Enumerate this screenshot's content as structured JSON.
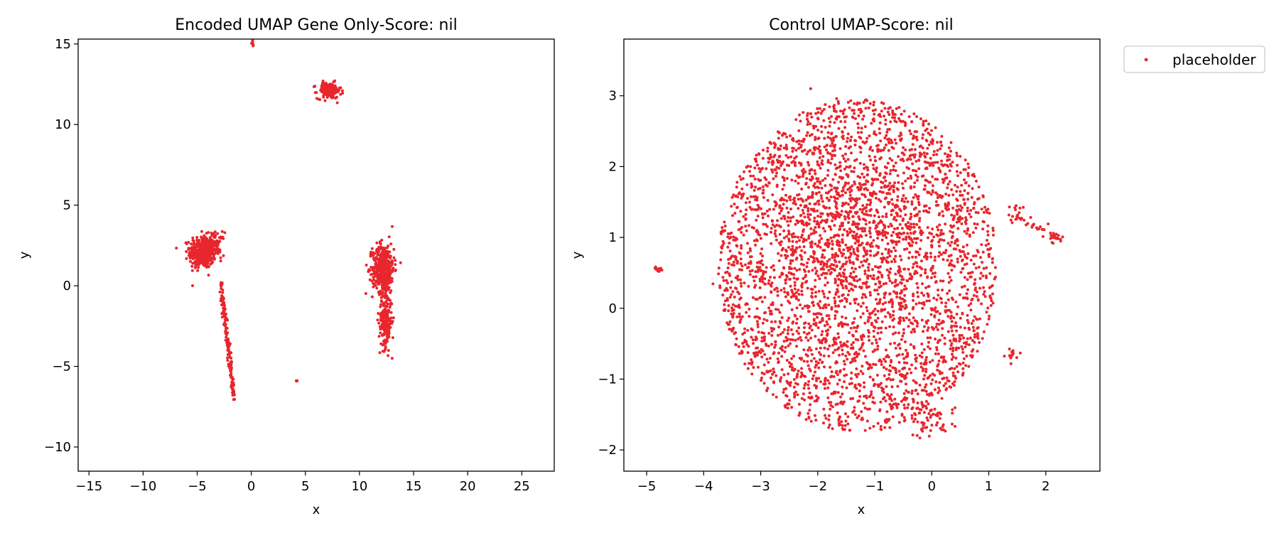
{
  "colors": {
    "marker": "#e8262d",
    "axis": "#000000",
    "legend_border": "#cccccc"
  },
  "chart_data": [
    {
      "type": "scatter",
      "title": "Encoded UMAP Gene Only-Score: nil",
      "xlabel": "x",
      "ylabel": "y",
      "xlim": [
        -16,
        28
      ],
      "ylim": [
        -11.5,
        15.3
      ],
      "xticks": [
        -15,
        -10,
        -5,
        0,
        5,
        10,
        15,
        20,
        25
      ],
      "yticks": [
        -10,
        -5,
        0,
        5,
        10,
        15
      ],
      "xtick_labels": [
        "−15",
        "−10",
        "−5",
        "0",
        "5",
        "10",
        "15",
        "20",
        "25"
      ],
      "ytick_labels": [
        "−10",
        "−5",
        "0",
        "5",
        "10",
        "15"
      ],
      "grid": false,
      "series": [
        {
          "name": "placeholder",
          "clusters": [
            {
              "shape": "ellipse",
              "cx": -4.5,
              "cy": 2.1,
              "sx": 0.6,
              "sy": 0.5,
              "n": 420
            },
            {
              "shape": "ellipse",
              "cx": -3.2,
              "cy": 2.6,
              "sx": 0.35,
              "sy": 0.35,
              "n": 60
            },
            {
              "shape": "line",
              "x0": -2.8,
              "y0": 0.2,
              "x1": -1.6,
              "y1": -7.0,
              "n": 160,
              "jitter": 0.15
            },
            {
              "shape": "ellipse",
              "cx": 7.2,
              "cy": 12.1,
              "sx": 0.55,
              "sy": 0.25,
              "n": 160
            },
            {
              "shape": "ellipse",
              "cx": 12.2,
              "cy": 1.1,
              "sx": 0.5,
              "sy": 0.75,
              "n": 450
            },
            {
              "shape": "ellipse",
              "cx": 12.4,
              "cy": -2.2,
              "sx": 0.3,
              "sy": 0.8,
              "n": 200
            },
            {
              "shape": "ellipse",
              "cx": 0.1,
              "cy": 15.0,
              "sx": 0.05,
              "sy": 0.08,
              "n": 8
            },
            {
              "shape": "ellipse",
              "cx": 4.2,
              "cy": -5.9,
              "sx": 0.02,
              "sy": 0.03,
              "n": 4
            }
          ]
        }
      ]
    },
    {
      "type": "scatter",
      "title": "Control UMAP-Score: nil",
      "xlabel": "x",
      "ylabel": "y",
      "xlim": [
        -5.4,
        2.95
      ],
      "ylim": [
        -2.3,
        3.8
      ],
      "xticks": [
        -5,
        -4,
        -3,
        -2,
        -1,
        0,
        1,
        2
      ],
      "yticks": [
        -2,
        -1,
        0,
        1,
        2,
        3
      ],
      "xtick_labels": [
        "−5",
        "−4",
        "−3",
        "−2",
        "−1",
        "0",
        "1",
        "2"
      ],
      "ytick_labels": [
        "−2",
        "−1",
        "0",
        "1",
        "2",
        "3"
      ],
      "grid": false,
      "legend": {
        "position": "outside-top-right",
        "label": "placeholder"
      },
      "series": [
        {
          "name": "placeholder",
          "clusters": [
            {
              "shape": "disk",
              "cx": -1.3,
              "cy": 0.6,
              "rx": 2.45,
              "ry": 2.35,
              "n": 3200
            },
            {
              "shape": "ellipse",
              "cx": -1.5,
              "cy": 1.0,
              "sx": 0.7,
              "sy": 0.7,
              "n": 500
            },
            {
              "shape": "ellipse",
              "cx": -4.8,
              "cy": 0.55,
              "sx": 0.04,
              "sy": 0.02,
              "n": 14
            },
            {
              "shape": "ellipse",
              "cx": 2.2,
              "cy": 1.0,
              "sx": 0.05,
              "sy": 0.03,
              "n": 18
            },
            {
              "shape": "line",
              "x0": 1.3,
              "y0": 1.4,
              "x1": 2.2,
              "y1": 1.0,
              "n": 40,
              "jitter": 0.06
            },
            {
              "shape": "ellipse",
              "cx": 1.4,
              "cy": -0.65,
              "sx": 0.05,
              "sy": 0.05,
              "n": 16
            },
            {
              "shape": "ellipse",
              "cx": 0.0,
              "cy": -1.6,
              "sx": 0.2,
              "sy": 0.12,
              "n": 60
            }
          ]
        }
      ]
    }
  ]
}
